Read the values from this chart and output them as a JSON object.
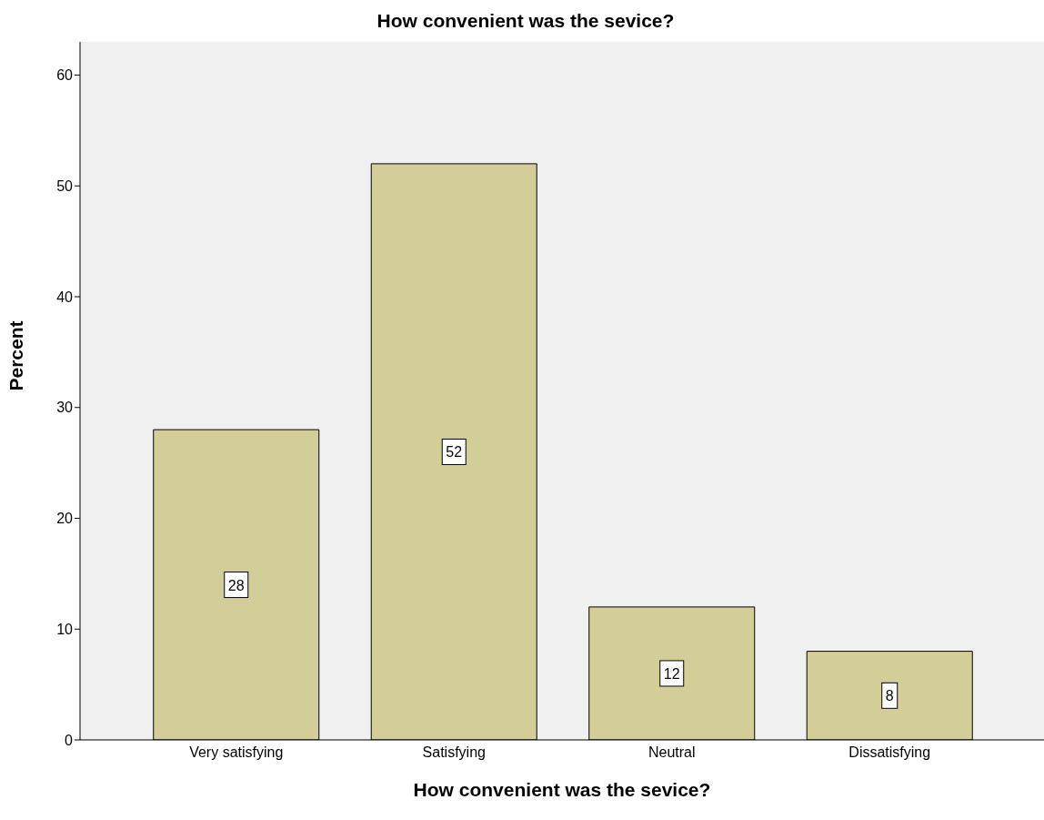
{
  "chart_data": {
    "type": "bar",
    "title": "How convenient was the sevice?",
    "xlabel": "How convenient was the sevice?",
    "ylabel": "Percent",
    "categories": [
      "Very satisfying",
      "Satisfying",
      "Neutral",
      "Dissatisfying"
    ],
    "values": [
      28,
      52,
      12,
      8
    ],
    "color": "#d3cd98",
    "ylim": [
      0,
      63
    ],
    "yticks": [
      0,
      10,
      20,
      30,
      40,
      50,
      60
    ],
    "grid": false,
    "legend": false,
    "data_labels": true
  }
}
